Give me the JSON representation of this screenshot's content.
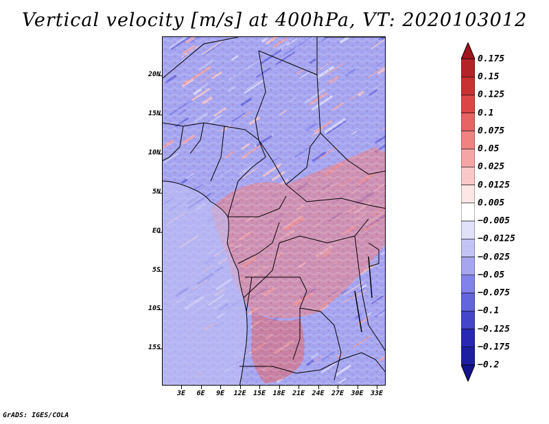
{
  "title": "Vertical velocity [m/s] at 400hPa, VT: 2020103012",
  "credit": "GrADS: IGES/COLA",
  "map": {
    "description_field": "vertical velocity",
    "lat_labels": [
      "20N",
      "15N",
      "10N",
      "5N",
      "EQ",
      "5S",
      "10S",
      "15S"
    ],
    "lon_labels": [
      "3E",
      "6E",
      "9E",
      "12E",
      "15E",
      "18E",
      "21E",
      "24E",
      "27E",
      "30E",
      "33E"
    ]
  },
  "colorbar": {
    "labels": [
      "0.175",
      "0.15",
      "0.125",
      "0.1",
      "0.075",
      "0.05",
      "0.025",
      "0.0125",
      "0.005",
      "−0.005",
      "−0.0125",
      "−0.025",
      "−0.05",
      "−0.075",
      "−0.1",
      "−0.125",
      "−0.175",
      "−0.2"
    ],
    "colors": [
      "#a0141e",
      "#b42328",
      "#c83232",
      "#dc4646",
      "#e66464",
      "#f08282",
      "#f5a5a5",
      "#fac8c8",
      "#fde6e6",
      "#ffffff",
      "#e1e1fa",
      "#c3c3f5",
      "#a5a5f0",
      "#8282eb",
      "#6464dc",
      "#4646c8",
      "#2828b4",
      "#1e1ea0",
      "#14148c"
    ]
  }
}
